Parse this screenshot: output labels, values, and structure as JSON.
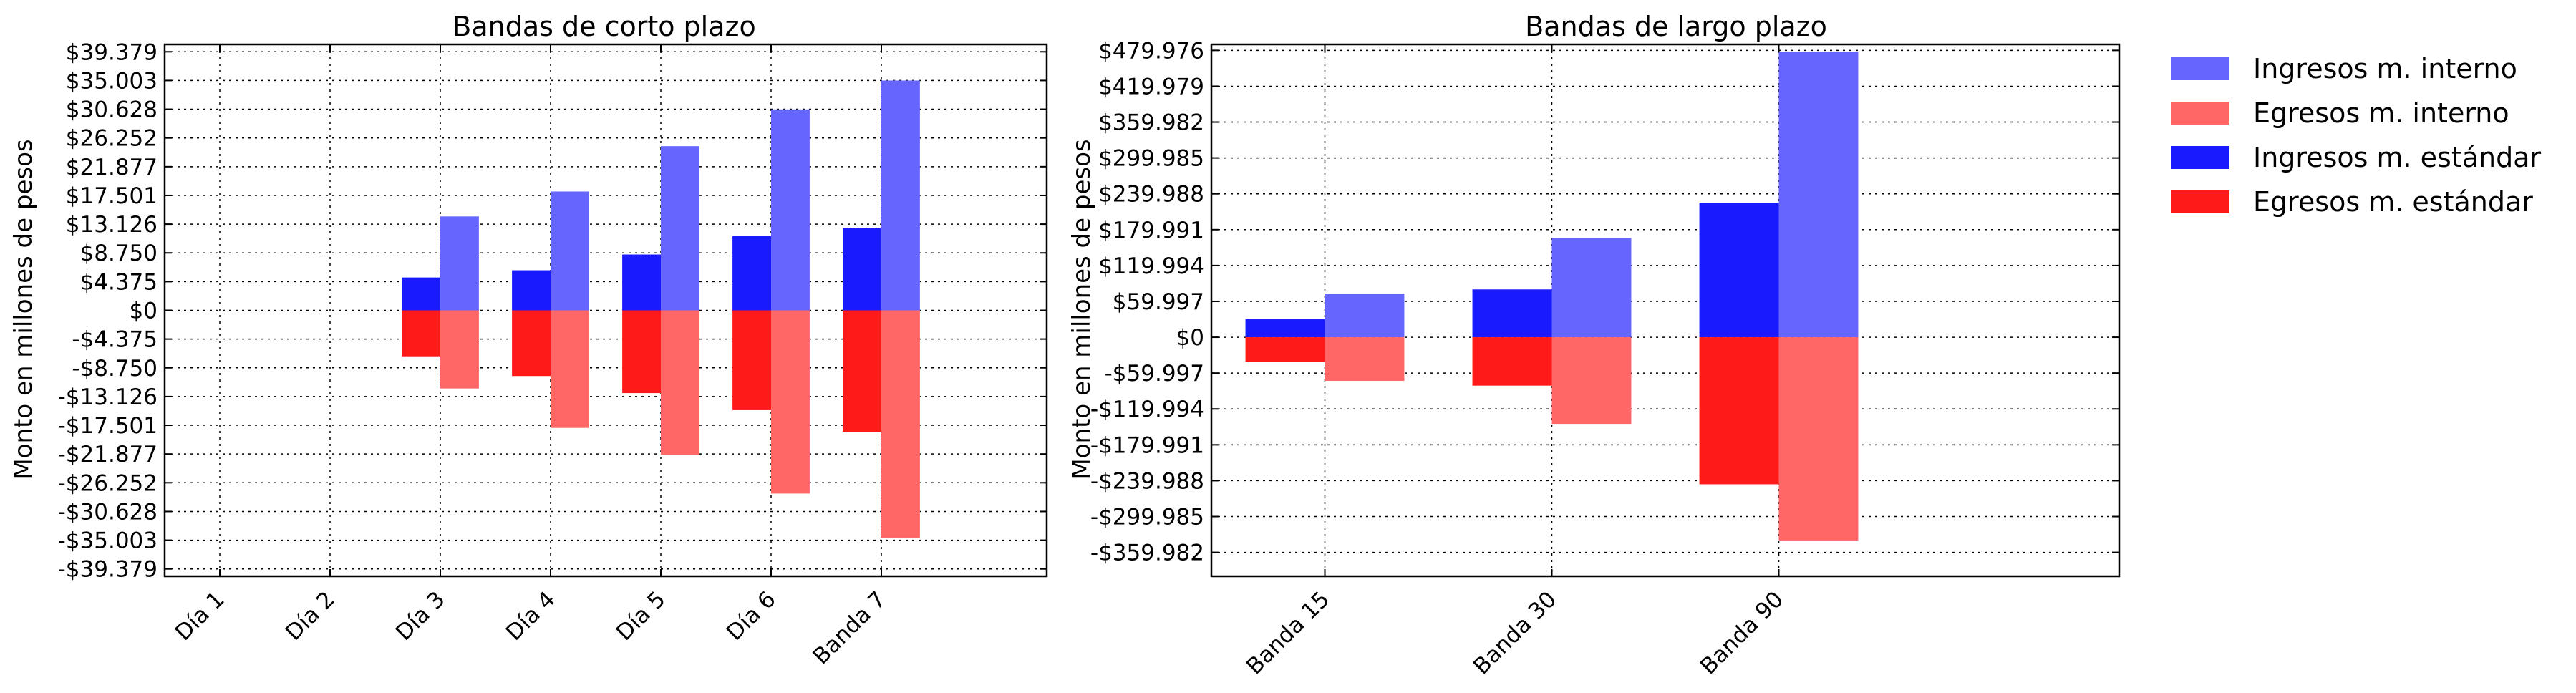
{
  "colors": {
    "ingresos_interno": "#6666ff",
    "egresos_interno": "#ff6666",
    "ingresos_estandar": "#1a1aff",
    "egresos_estandar": "#ff1a1a"
  },
  "legend": {
    "placement": "outside-right",
    "entries": [
      {
        "label": "Ingresos m. interno",
        "color_key": "ingresos_interno"
      },
      {
        "label": "Egresos m. interno",
        "color_key": "egresos_interno"
      },
      {
        "label": "Ingresos m. estándar",
        "color_key": "ingresos_estandar"
      },
      {
        "label": "Egresos m. estándar",
        "color_key": "egresos_estandar"
      }
    ]
  },
  "chart_data": [
    {
      "type": "bar",
      "title": "Bandas de corto plazo",
      "ylabel": "Monto en millones de pesos",
      "xlabel": "",
      "grid": true,
      "ylim": [
        -40.5,
        40.5
      ],
      "yticks": [
        -39.379,
        -35.003,
        -30.628,
        -26.252,
        -21.877,
        -17.501,
        -13.126,
        -8.75,
        -4.375,
        0,
        4.375,
        8.75,
        13.126,
        17.501,
        21.877,
        26.252,
        30.628,
        35.003,
        39.379
      ],
      "ytick_labels": [
        "-$39.379",
        "-$35.003",
        "-$30.628",
        "-$26.252",
        "-$21.877",
        "-$17.501",
        "-$13.126",
        "-$8.750",
        "-$4.375",
        "$0",
        "$4.375",
        "$8.750",
        "$13.126",
        "$17.501",
        "$21.877",
        "$26.252",
        "$30.628",
        "$35.003",
        "$39.379"
      ],
      "categories": [
        "Día 1",
        "Día 2",
        "Día 3",
        "Día 4",
        "Día 5",
        "Día 6",
        "Banda 7"
      ],
      "series": [
        {
          "name": "Ingresos m. estándar",
          "color_key": "ingresos_estandar",
          "values": [
            0,
            0,
            5.0,
            6.1,
            8.5,
            11.3,
            12.5
          ]
        },
        {
          "name": "Egresos m. estándar",
          "color_key": "egresos_estandar",
          "values": [
            0,
            0,
            -7.0,
            -10.0,
            -12.6,
            -15.2,
            -18.5
          ]
        },
        {
          "name": "Ingresos m. interno",
          "color_key": "ingresos_interno",
          "values": [
            0,
            0,
            14.3,
            18.1,
            25.0,
            30.6,
            35.0
          ]
        },
        {
          "name": "Egresos m. interno",
          "color_key": "egresos_interno",
          "values": [
            0,
            0,
            -11.9,
            -17.9,
            -22.0,
            -27.9,
            -34.7
          ]
        }
      ]
    },
    {
      "type": "bar",
      "title": "Bandas de largo plazo",
      "ylabel": "Monto en millones de pesos",
      "xlabel": "",
      "grid": true,
      "ylim": [
        -399.98,
        489.98
      ],
      "yticks": [
        -359.982,
        -299.985,
        -239.988,
        -179.991,
        -119.994,
        -59.997,
        0,
        59.997,
        119.994,
        179.991,
        239.988,
        299.985,
        359.982,
        419.979,
        479.976
      ],
      "ytick_labels": [
        "-$359.982",
        "-$299.985",
        "-$239.988",
        "-$179.991",
        "-$119.994",
        "-$59.997",
        "$0",
        "$59.997",
        "$119.994",
        "$179.991",
        "$239.988",
        "$299.985",
        "$359.982",
        "$419.979",
        "$479.976"
      ],
      "categories": [
        "Banda 15",
        "Banda 30",
        "Banda 90"
      ],
      "series": [
        {
          "name": "Ingresos m. estándar",
          "color_key": "ingresos_estandar",
          "values": [
            30,
            80,
            225
          ]
        },
        {
          "name": "Egresos m. estándar",
          "color_key": "egresos_estandar",
          "values": [
            -41,
            -81,
            -246
          ]
        },
        {
          "name": "Ingresos m. interno",
          "color_key": "ingresos_interno",
          "values": [
            73,
            166,
            478
          ]
        },
        {
          "name": "Egresos m. interno",
          "color_key": "egresos_interno",
          "values": [
            -73,
            -145,
            -340
          ]
        }
      ]
    }
  ]
}
